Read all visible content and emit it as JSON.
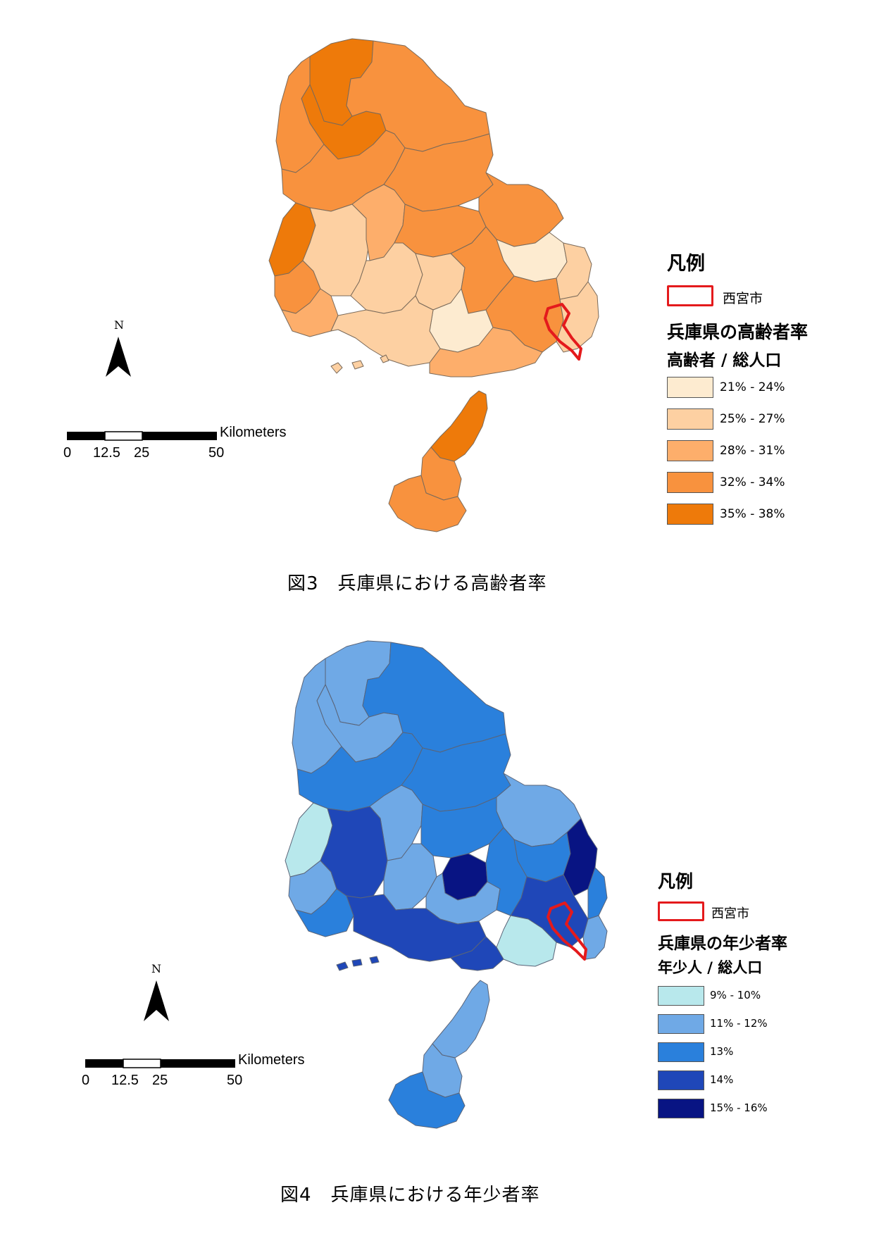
{
  "figure3": {
    "caption": "図3　兵庫県における高齢者率",
    "legend": {
      "heading": "凡例",
      "city_label": "西宮市",
      "title": "兵庫県の高齢者率",
      "subtitle": "高齢者 / 総人口",
      "items": [
        {
          "label": "21% - 24%",
          "color": "#fdebd0"
        },
        {
          "label": "25% - 27%",
          "color": "#fdd0a2"
        },
        {
          "label": "28% - 31%",
          "color": "#fdae6b"
        },
        {
          "label": "32% - 34%",
          "color": "#f8923e"
        },
        {
          "label": "35% - 38%",
          "color": "#ee7a0a"
        }
      ]
    },
    "scale": {
      "unit": "Kilometers",
      "ticks": [
        "0",
        "12.5",
        "25",
        "50"
      ]
    },
    "north": "N"
  },
  "figure4": {
    "caption": "図4　兵庫県における年少者率",
    "legend": {
      "heading": "凡例",
      "city_label": "西宮市",
      "title": "兵庫県の年少者率",
      "subtitle": "年少人 / 総人口",
      "items": [
        {
          "label": "9% - 10%",
          "color": "#b8e8ec"
        },
        {
          "label": "11% - 12%",
          "color": "#6fa9e6"
        },
        {
          "label": "13%",
          "color": "#2a80dc"
        },
        {
          "label": "14%",
          "color": "#1f47b8"
        },
        {
          "label": "15% - 16%",
          "color": "#081483"
        }
      ]
    },
    "scale": {
      "unit": "Kilometers",
      "ticks": [
        "0",
        "12.5",
        "25",
        "50"
      ]
    },
    "north": "N"
  },
  "colors": {
    "highlight": "#e41a1c",
    "border": "#6b6b6b"
  }
}
